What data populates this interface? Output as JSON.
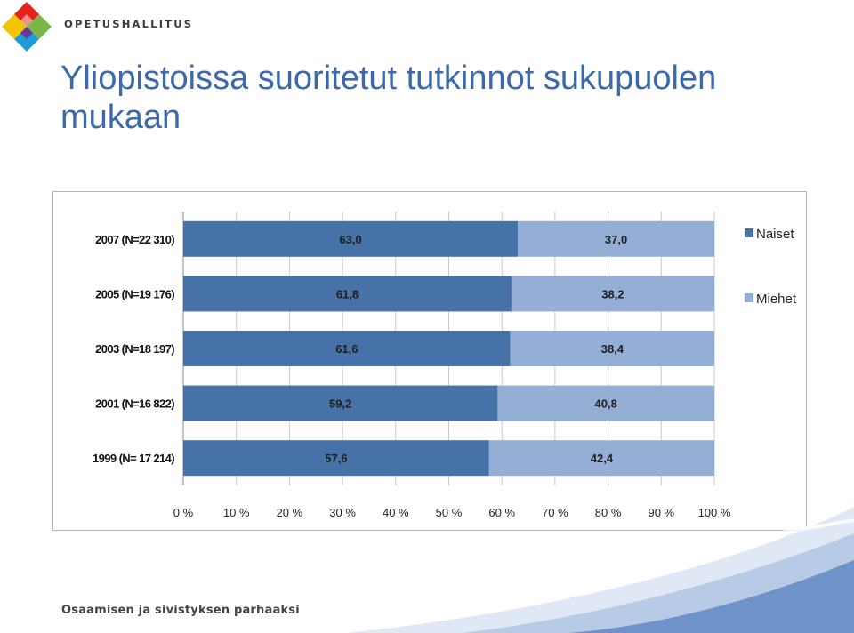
{
  "header": {
    "org_name": "OPETUSHALLITUS",
    "logo_icon": "opetushallitus-diamond-logo-icon",
    "title": "Yliopistoissa suoritetut tutkinnot sukupuolen mukaan"
  },
  "footer": {
    "tagline": "Osaamisen ja sivistyksen parhaaksi"
  },
  "colors": {
    "title": "#3c69aa",
    "naiset": "#4672a8",
    "miehet": "#95aed6",
    "grid": "#c9c9c9"
  },
  "chart_data": {
    "type": "bar",
    "orientation": "horizontal",
    "stacked": "percent",
    "categories": [
      "2007 (N=22 310)",
      "2005 (N=19 176)",
      "2003 (N=18 197)",
      "2001 (N=16 822)",
      "1999 (N= 17 214)"
    ],
    "series": [
      {
        "name": "Naiset",
        "values": [
          63.0,
          61.8,
          61.6,
          59.2,
          57.6
        ],
        "labels": [
          "63,0",
          "61,8",
          "61,6",
          "59,2",
          "57,6"
        ]
      },
      {
        "name": "Miehet",
        "values": [
          37.0,
          38.2,
          38.4,
          40.8,
          42.4
        ],
        "labels": [
          "37,0",
          "38,2",
          "38,4",
          "40,8",
          "42,4"
        ]
      }
    ],
    "xlim": [
      0,
      100
    ],
    "xticks": [
      "0 %",
      "10 %",
      "20 %",
      "30 %",
      "40 %",
      "50 %",
      "60 %",
      "70 %",
      "80 %",
      "90 %",
      "100 %"
    ],
    "grid": true,
    "legend_position": "right"
  }
}
